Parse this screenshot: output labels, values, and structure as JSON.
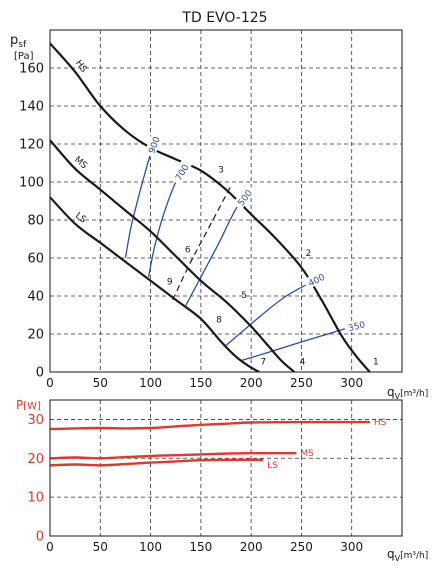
{
  "chart_data": [
    {
      "type": "line",
      "title": "TD EVO-125",
      "ylabel": "p",
      "ylabel_sub": "sf",
      "yunit": "[Pa]",
      "xlabel": "q",
      "xlabel_sub": "V",
      "xunit": "[m³/h]",
      "xlim": [
        0,
        350
      ],
      "ylim": [
        0,
        180
      ],
      "xticks": [
        "0",
        "50",
        "100",
        "150",
        "200",
        "250",
        "300"
      ],
      "yticks": [
        "0",
        "20",
        "40",
        "60",
        "80",
        "100",
        "120",
        "140",
        "160"
      ],
      "grid": "dashed",
      "series": [
        {
          "name": "HS",
          "color": "#1a1a1a",
          "x": [
            0,
            25,
            50,
            75,
            100,
            125,
            150,
            175,
            200,
            225,
            250,
            270,
            290,
            305,
            318
          ],
          "y": [
            173,
            158,
            140,
            127,
            118,
            112,
            106,
            96,
            83,
            70,
            55,
            38,
            19,
            8,
            0
          ],
          "curve_numbers": [
            {
              "label": "3",
              "x": 170,
              "y": 105
            },
            {
              "label": "2",
              "x": 257,
              "y": 61
            },
            {
              "label": "1",
              "x": 324,
              "y": 4
            }
          ]
        },
        {
          "name": "MS",
          "color": "#1a1a1a",
          "x": [
            0,
            25,
            50,
            75,
            100,
            125,
            150,
            175,
            200,
            215,
            230,
            243
          ],
          "y": [
            122,
            107,
            96,
            85,
            74,
            61,
            48,
            37,
            24,
            15,
            6,
            0
          ],
          "curve_numbers": [
            {
              "label": "6",
              "x": 137,
              "y": 63
            },
            {
              "label": "5",
              "x": 193,
              "y": 39
            },
            {
              "label": "4",
              "x": 251,
              "y": 4
            }
          ]
        },
        {
          "name": "LS",
          "color": "#1a1a1a",
          "x": [
            0,
            25,
            50,
            75,
            100,
            125,
            150,
            170,
            185,
            198,
            208
          ],
          "y": [
            92,
            78,
            68,
            58,
            48,
            38,
            28,
            16,
            8,
            3,
            0
          ],
          "curve_numbers": [
            {
              "label": "9",
              "x": 119,
              "y": 46
            },
            {
              "label": "8",
              "x": 168,
              "y": 26
            },
            {
              "label": "7",
              "x": 212,
              "y": 4
            }
          ]
        }
      ],
      "system_curves": [
        {
          "label": "900",
          "color": "#2a4fa8",
          "x": [
            75,
            80,
            86,
            92,
            100,
            105
          ],
          "y": [
            60,
            75,
            88,
            100,
            115,
            122
          ]
        },
        {
          "label": "700",
          "color": "#2a4fa8",
          "x": [
            98,
            104,
            113,
            125,
            134
          ],
          "y": [
            50,
            66,
            83,
            100,
            108
          ]
        },
        {
          "label": "500",
          "color": "#2a4fa8",
          "x": [
            135,
            150,
            168,
            185,
            198
          ],
          "y": [
            35,
            50,
            68,
            86,
            95
          ]
        },
        {
          "label": "400",
          "color": "#2a4fa8",
          "x": [
            175,
            195,
            215,
            235,
            255,
            270
          ],
          "y": [
            14,
            23,
            32,
            40,
            46,
            50
          ]
        },
        {
          "label": "350",
          "color": "#2a4fa8",
          "x": [
            190,
            215,
            245,
            270,
            295,
            310
          ],
          "y": [
            6,
            10,
            15,
            19,
            23,
            25
          ]
        }
      ],
      "reference_line": {
        "style": "dashed",
        "color": "#1a1a1a",
        "x": [
          122,
          140,
          160,
          180
        ],
        "y": [
          38,
          58,
          78,
          98
        ]
      }
    },
    {
      "type": "line",
      "ylabel": "P",
      "yunit": "[W]",
      "xlabel": "q",
      "xlabel_sub": "V",
      "xunit": "[m³/h]",
      "xlim": [
        0,
        350
      ],
      "ylim": [
        0,
        35
      ],
      "xticks": [
        "0",
        "50",
        "100",
        "150",
        "200",
        "250",
        "300"
      ],
      "yticks": [
        "0",
        "10",
        "20",
        "30"
      ],
      "grid": "dashed",
      "series": [
        {
          "name": "HS",
          "color": "#e2372b",
          "x": [
            0,
            25,
            50,
            75,
            100,
            125,
            150,
            175,
            200,
            250,
            300,
            318
          ],
          "y": [
            27.5,
            27.7,
            27.8,
            27.7,
            27.8,
            28.2,
            28.6,
            28.9,
            29.2,
            29.3,
            29.3,
            29.3
          ]
        },
        {
          "name": "MS",
          "color": "#e2372b",
          "x": [
            0,
            25,
            50,
            75,
            100,
            125,
            150,
            175,
            200,
            225,
            245
          ],
          "y": [
            20.0,
            20.2,
            20.0,
            20.3,
            20.6,
            20.8,
            21.0,
            21.2,
            21.3,
            21.3,
            21.3
          ]
        },
        {
          "name": "LS",
          "color": "#e2372b",
          "x": [
            0,
            25,
            50,
            75,
            100,
            125,
            150,
            175,
            200,
            212
          ],
          "y": [
            18.2,
            18.4,
            18.2,
            18.5,
            18.9,
            19.2,
            19.5,
            19.6,
            19.6,
            19.6
          ]
        }
      ]
    }
  ]
}
